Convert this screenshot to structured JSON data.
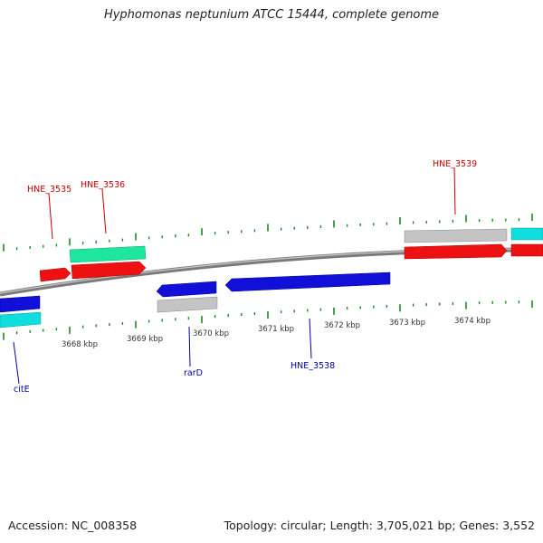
{
  "title": "Hyphomonas neptunium ATCC 15444, complete genome",
  "footer": {
    "accession": "Accession: NC_008358",
    "stats": "Topology: circular; Length: 3,705,021 bp; Genes: 3,552"
  },
  "colors": {
    "backbone": "#808080",
    "tick": "#1a8a1a",
    "top_label": "#cc0000",
    "bottom_label": "#0000aa",
    "red": "#ee1111",
    "blue": "#1010d8",
    "cyan": "#10dede",
    "spring": "#1ee6a0",
    "gray": "#c4c4c4"
  },
  "kbp_labels": [
    "3668 kbp",
    "3669 kbp",
    "3670 kbp",
    "3671 kbp",
    "3672 kbp",
    "3673 kbp",
    "3674 kbp"
  ],
  "top_labels": [
    "HNE_3535",
    "HNE_3536",
    "HNE_3539"
  ],
  "bottom_labels": [
    "citE",
    "rarD",
    "HNE_3538"
  ]
}
